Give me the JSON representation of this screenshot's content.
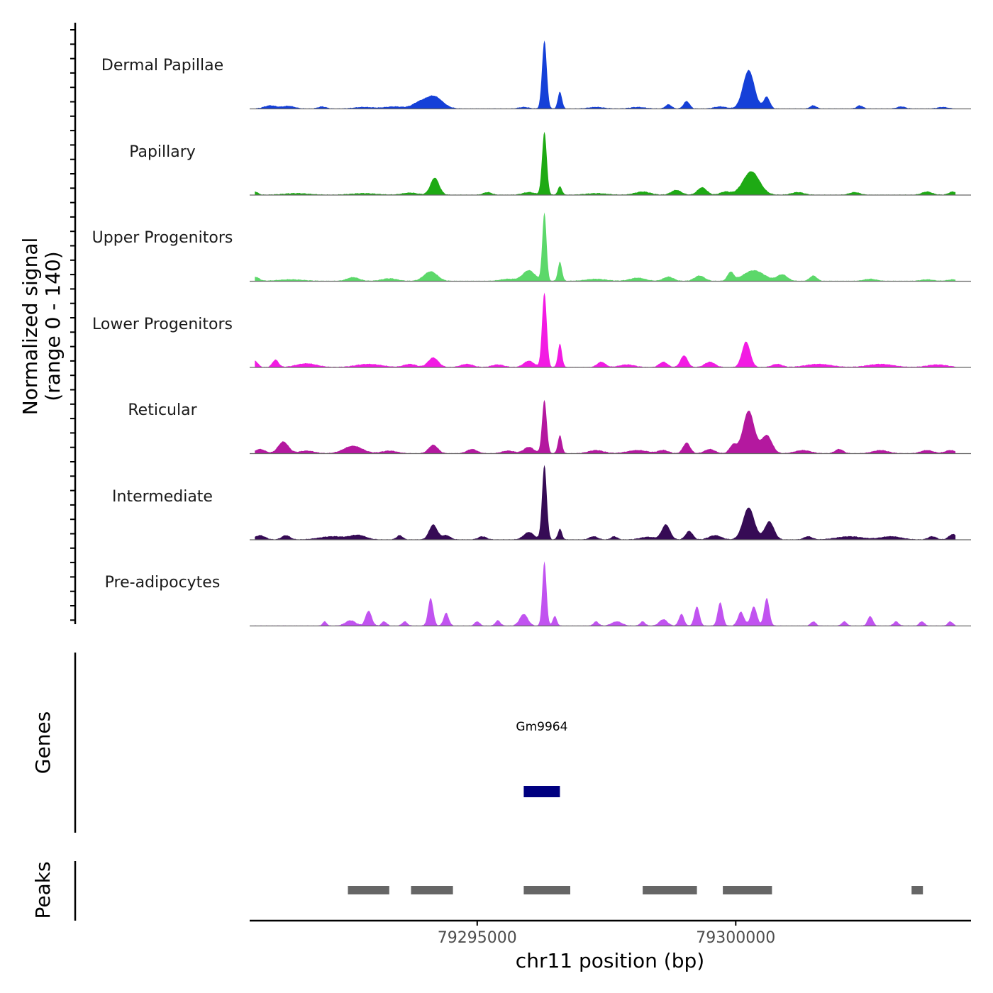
{
  "chart_data": {
    "type": "area",
    "subtype": "genome-coverage-tracks",
    "chromosome": "chr11",
    "xlabel": "chr11 position (bp)",
    "ylabel_line1": "Normalized signal",
    "ylabel_line2": "(range 0 - 140)",
    "signal_range": [
      0,
      140
    ],
    "xlim": [
      79290600,
      79304550
    ],
    "x_ticks": [
      79295000,
      79300000
    ],
    "x_tick_labels": [
      "79295000",
      "79300000"
    ],
    "baseline_color": "#666666",
    "tracks": [
      {
        "name": "Dermal Papillae",
        "color": "#1540d8",
        "peaks": [
          {
            "pos": 79291000,
            "h": 6,
            "w": 120
          },
          {
            "pos": 79291350,
            "h": 5,
            "w": 120
          },
          {
            "pos": 79292000,
            "h": 4,
            "w": 80
          },
          {
            "pos": 79292800,
            "h": 3,
            "w": 180
          },
          {
            "pos": 79293400,
            "h": 4,
            "w": 200
          },
          {
            "pos": 79294150,
            "h": 24,
            "w": 170
          },
          {
            "pos": 79293850,
            "h": 8,
            "w": 120
          },
          {
            "pos": 79295900,
            "h": 3,
            "w": 100
          },
          {
            "pos": 79296300,
            "h": 128,
            "w": 45
          },
          {
            "pos": 79296600,
            "h": 32,
            "w": 40
          },
          {
            "pos": 79297300,
            "h": 3,
            "w": 150
          },
          {
            "pos": 79298100,
            "h": 3,
            "w": 150
          },
          {
            "pos": 79298700,
            "h": 8,
            "w": 60
          },
          {
            "pos": 79299050,
            "h": 14,
            "w": 60
          },
          {
            "pos": 79299700,
            "h": 4,
            "w": 120
          },
          {
            "pos": 79300250,
            "h": 72,
            "w": 110
          },
          {
            "pos": 79300600,
            "h": 22,
            "w": 60
          },
          {
            "pos": 79301500,
            "h": 6,
            "w": 60
          },
          {
            "pos": 79302400,
            "h": 6,
            "w": 60
          },
          {
            "pos": 79303200,
            "h": 4,
            "w": 80
          },
          {
            "pos": 79304000,
            "h": 3,
            "w": 100
          }
        ]
      },
      {
        "name": "Papillary",
        "color": "#1eaa14",
        "peaks": [
          {
            "pos": 79290700,
            "h": 6,
            "w": 60
          },
          {
            "pos": 79291500,
            "h": 3,
            "w": 250
          },
          {
            "pos": 79292800,
            "h": 3,
            "w": 250
          },
          {
            "pos": 79293700,
            "h": 4,
            "w": 150
          },
          {
            "pos": 79294180,
            "h": 32,
            "w": 85
          },
          {
            "pos": 79295200,
            "h": 5,
            "w": 80
          },
          {
            "pos": 79296000,
            "h": 5,
            "w": 120
          },
          {
            "pos": 79296300,
            "h": 118,
            "w": 45
          },
          {
            "pos": 79296600,
            "h": 16,
            "w": 40
          },
          {
            "pos": 79297300,
            "h": 3,
            "w": 200
          },
          {
            "pos": 79298200,
            "h": 6,
            "w": 150
          },
          {
            "pos": 79298850,
            "h": 9,
            "w": 100
          },
          {
            "pos": 79299350,
            "h": 14,
            "w": 90
          },
          {
            "pos": 79299800,
            "h": 6,
            "w": 100
          },
          {
            "pos": 79300300,
            "h": 44,
            "w": 160
          },
          {
            "pos": 79301200,
            "h": 5,
            "w": 120
          },
          {
            "pos": 79302300,
            "h": 5,
            "w": 100
          },
          {
            "pos": 79303700,
            "h": 6,
            "w": 100
          },
          {
            "pos": 79304200,
            "h": 6,
            "w": 80
          }
        ]
      },
      {
        "name": "Upper Progenitors",
        "color": "#5cd86a",
        "peaks": [
          {
            "pos": 79290700,
            "h": 8,
            "w": 80
          },
          {
            "pos": 79291400,
            "h": 3,
            "w": 250
          },
          {
            "pos": 79292600,
            "h": 7,
            "w": 120
          },
          {
            "pos": 79293300,
            "h": 5,
            "w": 150
          },
          {
            "pos": 79294100,
            "h": 18,
            "w": 130
          },
          {
            "pos": 79295600,
            "h": 4,
            "w": 150
          },
          {
            "pos": 79296000,
            "h": 20,
            "w": 120
          },
          {
            "pos": 79296300,
            "h": 128,
            "w": 40
          },
          {
            "pos": 79296600,
            "h": 36,
            "w": 40
          },
          {
            "pos": 79297300,
            "h": 4,
            "w": 200
          },
          {
            "pos": 79298100,
            "h": 6,
            "w": 150
          },
          {
            "pos": 79298700,
            "h": 8,
            "w": 100
          },
          {
            "pos": 79299300,
            "h": 10,
            "w": 100
          },
          {
            "pos": 79299900,
            "h": 16,
            "w": 60
          },
          {
            "pos": 79300350,
            "h": 20,
            "w": 200
          },
          {
            "pos": 79300900,
            "h": 12,
            "w": 100
          },
          {
            "pos": 79301500,
            "h": 10,
            "w": 70
          },
          {
            "pos": 79302600,
            "h": 4,
            "w": 120
          },
          {
            "pos": 79303700,
            "h": 3,
            "w": 120
          },
          {
            "pos": 79304200,
            "h": 3,
            "w": 100
          }
        ]
      },
      {
        "name": "Lower Progenitors",
        "color": "#f21be3",
        "peaks": [
          {
            "pos": 79290700,
            "h": 12,
            "w": 60
          },
          {
            "pos": 79291100,
            "h": 14,
            "w": 60
          },
          {
            "pos": 79291700,
            "h": 7,
            "w": 200
          },
          {
            "pos": 79292900,
            "h": 6,
            "w": 250
          },
          {
            "pos": 79293700,
            "h": 6,
            "w": 120
          },
          {
            "pos": 79294150,
            "h": 18,
            "w": 100
          },
          {
            "pos": 79294800,
            "h": 6,
            "w": 120
          },
          {
            "pos": 79295400,
            "h": 5,
            "w": 120
          },
          {
            "pos": 79296000,
            "h": 12,
            "w": 100
          },
          {
            "pos": 79296300,
            "h": 140,
            "w": 45
          },
          {
            "pos": 79296600,
            "h": 44,
            "w": 40
          },
          {
            "pos": 79297400,
            "h": 10,
            "w": 80
          },
          {
            "pos": 79297900,
            "h": 5,
            "w": 150
          },
          {
            "pos": 79298600,
            "h": 10,
            "w": 80
          },
          {
            "pos": 79299000,
            "h": 22,
            "w": 70
          },
          {
            "pos": 79299500,
            "h": 10,
            "w": 100
          },
          {
            "pos": 79300200,
            "h": 48,
            "w": 80
          },
          {
            "pos": 79300800,
            "h": 6,
            "w": 100
          },
          {
            "pos": 79301600,
            "h": 6,
            "w": 250
          },
          {
            "pos": 79302800,
            "h": 6,
            "w": 250
          },
          {
            "pos": 79303900,
            "h": 5,
            "w": 200
          }
        ]
      },
      {
        "name": "Reticular",
        "color": "#b4189f",
        "peaks": [
          {
            "pos": 79290800,
            "h": 8,
            "w": 100
          },
          {
            "pos": 79291250,
            "h": 22,
            "w": 100
          },
          {
            "pos": 79291700,
            "h": 5,
            "w": 150
          },
          {
            "pos": 79292600,
            "h": 14,
            "w": 180
          },
          {
            "pos": 79293300,
            "h": 5,
            "w": 150
          },
          {
            "pos": 79294150,
            "h": 16,
            "w": 90
          },
          {
            "pos": 79294900,
            "h": 8,
            "w": 100
          },
          {
            "pos": 79295600,
            "h": 5,
            "w": 120
          },
          {
            "pos": 79296000,
            "h": 12,
            "w": 100
          },
          {
            "pos": 79296300,
            "h": 100,
            "w": 45
          },
          {
            "pos": 79296600,
            "h": 34,
            "w": 40
          },
          {
            "pos": 79297300,
            "h": 6,
            "w": 150
          },
          {
            "pos": 79298100,
            "h": 6,
            "w": 200
          },
          {
            "pos": 79298600,
            "h": 6,
            "w": 100
          },
          {
            "pos": 79299050,
            "h": 20,
            "w": 70
          },
          {
            "pos": 79299500,
            "h": 8,
            "w": 100
          },
          {
            "pos": 79299950,
            "h": 16,
            "w": 70
          },
          {
            "pos": 79300250,
            "h": 80,
            "w": 110
          },
          {
            "pos": 79300600,
            "h": 34,
            "w": 100
          },
          {
            "pos": 79301300,
            "h": 6,
            "w": 150
          },
          {
            "pos": 79302000,
            "h": 8,
            "w": 80
          },
          {
            "pos": 79302800,
            "h": 6,
            "w": 150
          },
          {
            "pos": 79303700,
            "h": 6,
            "w": 120
          },
          {
            "pos": 79304150,
            "h": 6,
            "w": 100
          }
        ]
      },
      {
        "name": "Intermediate",
        "color": "#360b55",
        "peaks": [
          {
            "pos": 79290800,
            "h": 8,
            "w": 100
          },
          {
            "pos": 79291300,
            "h": 8,
            "w": 80
          },
          {
            "pos": 79292200,
            "h": 6,
            "w": 250
          },
          {
            "pos": 79292700,
            "h": 8,
            "w": 150
          },
          {
            "pos": 79293500,
            "h": 8,
            "w": 60
          },
          {
            "pos": 79294150,
            "h": 28,
            "w": 80
          },
          {
            "pos": 79294400,
            "h": 8,
            "w": 80
          },
          {
            "pos": 79295100,
            "h": 6,
            "w": 80
          },
          {
            "pos": 79296000,
            "h": 14,
            "w": 100
          },
          {
            "pos": 79296300,
            "h": 140,
            "w": 45
          },
          {
            "pos": 79296600,
            "h": 20,
            "w": 40
          },
          {
            "pos": 79297250,
            "h": 6,
            "w": 80
          },
          {
            "pos": 79297650,
            "h": 6,
            "w": 60
          },
          {
            "pos": 79298300,
            "h": 5,
            "w": 150
          },
          {
            "pos": 79298650,
            "h": 28,
            "w": 80
          },
          {
            "pos": 79299100,
            "h": 16,
            "w": 70
          },
          {
            "pos": 79299600,
            "h": 8,
            "w": 120
          },
          {
            "pos": 79300250,
            "h": 60,
            "w": 110
          },
          {
            "pos": 79300650,
            "h": 34,
            "w": 90
          },
          {
            "pos": 79301400,
            "h": 6,
            "w": 80
          },
          {
            "pos": 79302200,
            "h": 6,
            "w": 250
          },
          {
            "pos": 79303000,
            "h": 6,
            "w": 200
          },
          {
            "pos": 79303800,
            "h": 6,
            "w": 80
          },
          {
            "pos": 79304200,
            "h": 10,
            "w": 80
          }
        ]
      },
      {
        "name": "Pre-adipocytes",
        "color": "#c153f0",
        "peaks": [
          {
            "pos": 79292050,
            "h": 8,
            "w": 40
          },
          {
            "pos": 79292550,
            "h": 10,
            "w": 100
          },
          {
            "pos": 79292900,
            "h": 28,
            "w": 60
          },
          {
            "pos": 79293200,
            "h": 8,
            "w": 50
          },
          {
            "pos": 79293600,
            "h": 8,
            "w": 50
          },
          {
            "pos": 79294100,
            "h": 52,
            "w": 50
          },
          {
            "pos": 79294400,
            "h": 24,
            "w": 50
          },
          {
            "pos": 79295000,
            "h": 8,
            "w": 50
          },
          {
            "pos": 79295400,
            "h": 10,
            "w": 50
          },
          {
            "pos": 79295900,
            "h": 22,
            "w": 80
          },
          {
            "pos": 79296300,
            "h": 120,
            "w": 40
          },
          {
            "pos": 79296500,
            "h": 18,
            "w": 40
          },
          {
            "pos": 79297300,
            "h": 8,
            "w": 50
          },
          {
            "pos": 79297700,
            "h": 8,
            "w": 100
          },
          {
            "pos": 79298200,
            "h": 8,
            "w": 50
          },
          {
            "pos": 79298600,
            "h": 12,
            "w": 80
          },
          {
            "pos": 79298950,
            "h": 22,
            "w": 50
          },
          {
            "pos": 79299250,
            "h": 36,
            "w": 50
          },
          {
            "pos": 79299700,
            "h": 44,
            "w": 50
          },
          {
            "pos": 79300100,
            "h": 26,
            "w": 60
          },
          {
            "pos": 79300350,
            "h": 36,
            "w": 60
          },
          {
            "pos": 79300600,
            "h": 52,
            "w": 50
          },
          {
            "pos": 79301500,
            "h": 8,
            "w": 50
          },
          {
            "pos": 79302100,
            "h": 8,
            "w": 50
          },
          {
            "pos": 79302600,
            "h": 18,
            "w": 50
          },
          {
            "pos": 79303100,
            "h": 8,
            "w": 50
          },
          {
            "pos": 79303600,
            "h": 8,
            "w": 50
          },
          {
            "pos": 79304150,
            "h": 8,
            "w": 50
          }
        ]
      }
    ],
    "genes": {
      "label": "Genes",
      "items": [
        {
          "name": "Gm9964",
          "start": 79295900,
          "end": 79296600,
          "color": "#000080"
        }
      ]
    },
    "peaks_track": {
      "label": "Peaks",
      "color": "#666666",
      "regions": [
        [
          79292500,
          79293300
        ],
        [
          79293720,
          79294530
        ],
        [
          79295900,
          79296800
        ],
        [
          79298200,
          79299250
        ],
        [
          79299750,
          79300700
        ],
        [
          79303400,
          79303620
        ]
      ]
    }
  }
}
